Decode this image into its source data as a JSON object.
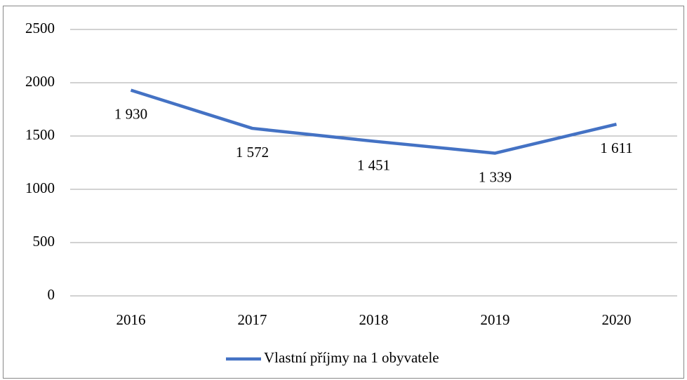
{
  "chart_data": {
    "type": "line",
    "categories": [
      "2016",
      "2017",
      "2018",
      "2019",
      "2020"
    ],
    "series": [
      {
        "name": "Vlastní příjmy na 1 obyvatele",
        "color": "#4472c4",
        "values": [
          1930,
          1572,
          1451,
          1339,
          1611
        ],
        "value_labels": [
          "1 930",
          "1 572",
          "1 451",
          "1 339",
          "1 611"
        ]
      }
    ],
    "ylim": [
      0,
      2500
    ],
    "yticks": [
      0,
      500,
      1000,
      1500,
      2000,
      2500
    ],
    "grid": true,
    "legend": "bottom"
  }
}
